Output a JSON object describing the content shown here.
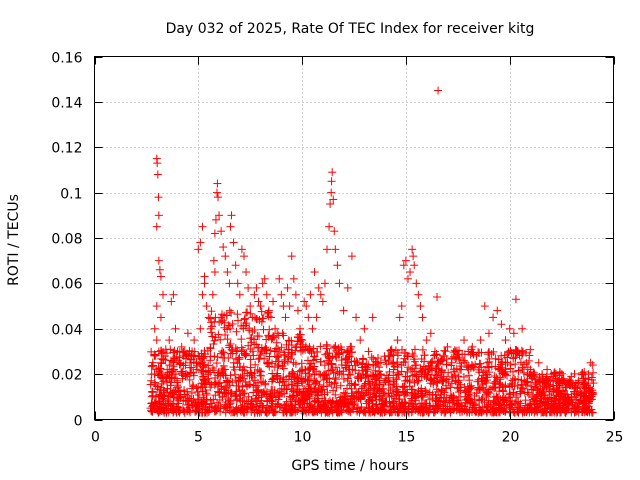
{
  "chart_data": {
    "type": "scatter",
    "title": "Day 032 of 2025, Rate Of TEC Index for receiver kitg",
    "xlabel": "GPS time / hours",
    "ylabel": "ROTI / TECUs",
    "xlim": [
      0,
      25
    ],
    "ylim": [
      0,
      0.16
    ],
    "x_ticks": [
      "0",
      "5",
      "10",
      "15",
      "20",
      "25"
    ],
    "y_ticks": [
      "0",
      "0.02",
      "0.04",
      "0.06",
      "0.08",
      "0.1",
      "0.12",
      "0.14",
      "0.16"
    ],
    "x_tick_values": [
      0,
      5,
      10,
      15,
      20,
      25
    ],
    "y_tick_values": [
      0,
      0.02,
      0.04,
      0.06,
      0.08,
      0.1,
      0.12,
      0.14,
      0.16
    ],
    "grid": true,
    "marker": "+",
    "color": "#ff0000",
    "series": [
      {
        "points": [
          [
            2.7,
            0.005
          ],
          [
            2.8,
            0.012
          ],
          [
            2.9,
            0.02
          ],
          [
            3.0,
            0.115
          ],
          [
            3.02,
            0.113
          ],
          [
            3.05,
            0.108
          ],
          [
            3.08,
            0.098
          ],
          [
            3.1,
            0.09
          ],
          [
            3.0,
            0.085
          ],
          [
            3.1,
            0.07
          ],
          [
            3.15,
            0.066
          ],
          [
            3.2,
            0.063
          ],
          [
            3.3,
            0.055
          ],
          [
            3.0,
            0.05
          ],
          [
            3.2,
            0.045
          ],
          [
            2.9,
            0.04
          ],
          [
            3.0,
            0.035
          ],
          [
            3.1,
            0.03
          ],
          [
            3.2,
            0.025
          ],
          [
            3.3,
            0.018
          ],
          [
            3.4,
            0.028
          ],
          [
            3.5,
            0.022
          ],
          [
            3.6,
            0.035
          ],
          [
            3.7,
            0.052
          ],
          [
            3.8,
            0.055
          ],
          [
            3.9,
            0.04
          ],
          [
            4.0,
            0.03
          ],
          [
            4.1,
            0.025
          ],
          [
            4.2,
            0.032
          ],
          [
            4.3,
            0.028
          ],
          [
            4.4,
            0.02
          ],
          [
            4.5,
            0.038
          ],
          [
            4.6,
            0.025
          ],
          [
            4.7,
            0.03
          ],
          [
            4.8,
            0.035
          ],
          [
            4.9,
            0.022
          ],
          [
            5.0,
            0.028
          ],
          [
            5.1,
            0.04
          ],
          [
            5.2,
            0.055
          ],
          [
            5.3,
            0.063
          ],
          [
            5.0,
            0.075
          ],
          [
            5.1,
            0.078
          ],
          [
            5.2,
            0.085
          ],
          [
            5.3,
            0.06
          ],
          [
            5.4,
            0.05
          ],
          [
            5.5,
            0.045
          ],
          [
            5.6,
            0.04
          ],
          [
            5.7,
            0.055
          ],
          [
            5.8,
            0.065
          ],
          [
            5.75,
            0.07
          ],
          [
            5.8,
            0.082
          ],
          [
            5.85,
            0.088
          ],
          [
            5.9,
            0.1
          ],
          [
            5.92,
            0.104
          ],
          [
            5.95,
            0.098
          ],
          [
            6.0,
            0.09
          ],
          [
            6.1,
            0.083
          ],
          [
            6.2,
            0.076
          ],
          [
            6.3,
            0.072
          ],
          [
            6.4,
            0.065
          ],
          [
            6.5,
            0.06
          ],
          [
            6.6,
            0.09
          ],
          [
            6.55,
            0.085
          ],
          [
            6.7,
            0.078
          ],
          [
            6.8,
            0.068
          ],
          [
            6.9,
            0.06
          ],
          [
            7.0,
            0.055
          ],
          [
            7.1,
            0.075
          ],
          [
            7.2,
            0.072
          ],
          [
            7.3,
            0.065
          ],
          [
            7.4,
            0.058
          ],
          [
            7.5,
            0.05
          ],
          [
            7.6,
            0.045
          ],
          [
            7.7,
            0.055
          ],
          [
            7.8,
            0.058
          ],
          [
            7.9,
            0.052
          ],
          [
            8.0,
            0.05
          ],
          [
            8.1,
            0.06
          ],
          [
            8.2,
            0.062
          ],
          [
            8.3,
            0.055
          ],
          [
            8.4,
            0.048
          ],
          [
            8.5,
            0.045
          ],
          [
            8.6,
            0.052
          ],
          [
            8.7,
            0.04
          ],
          [
            8.8,
            0.038
          ],
          [
            8.9,
            0.062
          ],
          [
            9.0,
            0.055
          ],
          [
            9.1,
            0.05
          ],
          [
            9.2,
            0.045
          ],
          [
            9.3,
            0.058
          ],
          [
            9.4,
            0.05
          ],
          [
            9.5,
            0.072
          ],
          [
            9.6,
            0.062
          ],
          [
            9.7,
            0.055
          ],
          [
            9.8,
            0.048
          ],
          [
            9.9,
            0.04
          ],
          [
            10.0,
            0.035
          ],
          [
            10.1,
            0.052
          ],
          [
            10.2,
            0.05
          ],
          [
            10.3,
            0.045
          ],
          [
            10.4,
            0.055
          ],
          [
            10.5,
            0.04
          ],
          [
            10.6,
            0.065
          ],
          [
            10.7,
            0.045
          ],
          [
            10.8,
            0.058
          ],
          [
            10.9,
            0.055
          ],
          [
            11.0,
            0.052
          ],
          [
            11.1,
            0.06
          ],
          [
            11.2,
            0.075
          ],
          [
            11.3,
            0.085
          ],
          [
            11.35,
            0.095
          ],
          [
            11.4,
            0.1
          ],
          [
            11.42,
            0.105
          ],
          [
            11.45,
            0.109
          ],
          [
            11.5,
            0.097
          ],
          [
            11.55,
            0.083
          ],
          [
            11.6,
            0.075
          ],
          [
            11.7,
            0.068
          ],
          [
            11.8,
            0.06
          ],
          [
            12.0,
            0.048
          ],
          [
            12.2,
            0.058
          ],
          [
            12.4,
            0.072
          ],
          [
            12.6,
            0.045
          ],
          [
            12.8,
            0.035
          ],
          [
            13.0,
            0.04
          ],
          [
            13.2,
            0.03
          ],
          [
            13.4,
            0.045
          ],
          [
            13.6,
            0.025
          ],
          [
            13.8,
            0.02
          ],
          [
            14.0,
            0.018
          ],
          [
            14.2,
            0.028
          ],
          [
            14.4,
            0.025
          ],
          [
            14.6,
            0.035
          ],
          [
            14.7,
            0.045
          ],
          [
            14.8,
            0.05
          ],
          [
            14.9,
            0.068
          ],
          [
            15.0,
            0.07
          ],
          [
            15.1,
            0.062
          ],
          [
            15.2,
            0.065
          ],
          [
            15.3,
            0.075
          ],
          [
            15.35,
            0.072
          ],
          [
            15.4,
            0.068
          ],
          [
            15.5,
            0.06
          ],
          [
            15.6,
            0.055
          ],
          [
            15.7,
            0.05
          ],
          [
            15.8,
            0.045
          ],
          [
            16.0,
            0.035
          ],
          [
            16.2,
            0.038
          ],
          [
            16.4,
            0.03
          ],
          [
            16.5,
            0.054
          ],
          [
            16.55,
            0.145
          ],
          [
            16.6,
            0.025
          ],
          [
            16.8,
            0.028
          ],
          [
            17.0,
            0.032
          ],
          [
            17.2,
            0.025
          ],
          [
            17.4,
            0.03
          ],
          [
            17.6,
            0.022
          ],
          [
            17.8,
            0.035
          ],
          [
            18.0,
            0.03
          ],
          [
            18.2,
            0.032
          ],
          [
            18.4,
            0.028
          ],
          [
            18.6,
            0.035
          ],
          [
            18.8,
            0.05
          ],
          [
            19.0,
            0.038
          ],
          [
            19.2,
            0.045
          ],
          [
            19.4,
            0.048
          ],
          [
            19.6,
            0.042
          ],
          [
            19.8,
            0.035
          ],
          [
            20.0,
            0.04
          ],
          [
            20.2,
            0.038
          ],
          [
            20.3,
            0.053
          ],
          [
            20.4,
            0.03
          ],
          [
            20.6,
            0.04
          ],
          [
            20.8,
            0.025
          ],
          [
            21.0,
            0.022
          ],
          [
            21.2,
            0.02
          ],
          [
            21.4,
            0.025
          ],
          [
            21.6,
            0.018
          ],
          [
            21.8,
            0.022
          ],
          [
            22.0,
            0.02
          ],
          [
            22.2,
            0.018
          ],
          [
            22.4,
            0.015
          ],
          [
            22.6,
            0.018
          ],
          [
            22.8,
            0.016
          ],
          [
            23.0,
            0.015
          ],
          [
            23.2,
            0.014
          ],
          [
            23.4,
            0.012
          ],
          [
            23.6,
            0.014
          ],
          [
            23.8,
            0.02
          ],
          [
            23.9,
            0.025
          ],
          [
            24.0,
            0.024
          ]
        ]
      }
    ]
  }
}
